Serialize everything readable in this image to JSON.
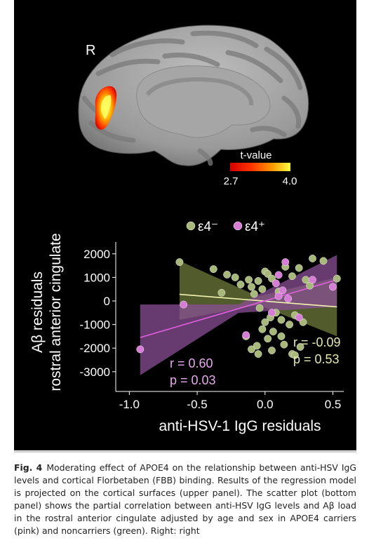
{
  "brain": {
    "hemisphere_label": "R",
    "colorbar_title": "t-value",
    "colorbar_min": "2.7",
    "colorbar_max": "4.0",
    "colorbar_colors": [
      "#d40000",
      "#ff3300",
      "#ff9900",
      "#ffff44"
    ]
  },
  "legend": {
    "green_label": "ε4⁻",
    "pink_label": "ε4⁺"
  },
  "chart_data": {
    "type": "scatter",
    "xlabel": "anti-HSV-1 IgG residuals",
    "ylabel_line1": "Aβ residuals",
    "ylabel_line2": "rostral anterior cingulate",
    "xlim": [
      -1.1,
      0.58
    ],
    "ylim": [
      -3600,
      2500
    ],
    "x_ticks": [
      -1.0,
      -0.5,
      0.0,
      0.5
    ],
    "x_tick_labels": [
      "-1.0",
      "-0.5",
      "0.0",
      "0.5"
    ],
    "y_ticks": [
      2000,
      1000,
      0,
      -1000,
      -2000,
      -3000
    ],
    "y_tick_labels": [
      "2000",
      "1000",
      "0",
      "-1000",
      "-2000",
      "-3000"
    ],
    "series": [
      {
        "name": "ε4⁻",
        "color": "#a8b87a",
        "points": [
          [
            -0.63,
            1650
          ],
          [
            -0.38,
            1350
          ],
          [
            -0.28,
            1120
          ],
          [
            -0.22,
            1000
          ],
          [
            -0.18,
            700
          ],
          [
            -0.32,
            350
          ],
          [
            -0.12,
            900
          ],
          [
            -0.1,
            600
          ],
          [
            -0.05,
            850
          ],
          [
            -0.02,
            500
          ],
          [
            0.0,
            1250
          ],
          [
            0.02,
            1150
          ],
          [
            0.05,
            950
          ],
          [
            -0.08,
            300
          ],
          [
            0.1,
            400
          ],
          [
            0.15,
            1450
          ],
          [
            0.2,
            1050
          ],
          [
            0.25,
            1400
          ],
          [
            0.3,
            900
          ],
          [
            0.35,
            1800
          ],
          [
            0.43,
            1700
          ],
          [
            0.53,
            950
          ],
          [
            0.33,
            650
          ],
          [
            -0.04,
            -300
          ],
          [
            0.0,
            -900
          ],
          [
            0.04,
            -700
          ],
          [
            0.08,
            -500
          ],
          [
            0.12,
            -800
          ],
          [
            0.18,
            -1000
          ],
          [
            0.22,
            -600
          ],
          [
            0.28,
            -900
          ],
          [
            0.06,
            -1300
          ],
          [
            0.12,
            -1500
          ],
          [
            0.14,
            -1850
          ],
          [
            0.02,
            -1600
          ],
          [
            -0.02,
            -1200
          ],
          [
            -0.06,
            -1900
          ],
          [
            -0.1,
            -2050
          ],
          [
            -0.14,
            -1500
          ],
          [
            0.05,
            -2100
          ],
          [
            0.2,
            -2250
          ],
          [
            -0.05,
            -2250
          ],
          [
            0.22,
            -2300
          ],
          [
            0.26,
            -1950
          ]
        ]
      },
      {
        "name": "ε4⁺",
        "color": "#d67ed6",
        "points": [
          [
            -0.92,
            -2050
          ],
          [
            -0.6,
            -150
          ],
          [
            -0.14,
            -1450
          ],
          [
            0.05,
            -500
          ],
          [
            0.08,
            750
          ],
          [
            0.1,
            1100
          ],
          [
            0.13,
            450
          ],
          [
            0.15,
            1650
          ],
          [
            0.17,
            100
          ],
          [
            0.25,
            -700
          ],
          [
            0.35,
            900
          ],
          [
            0.5,
            600
          ],
          [
            0.1,
            200
          ]
        ]
      }
    ],
    "annotations": [
      {
        "text": "r = 0.60",
        "series": "ε4⁺"
      },
      {
        "text": "p = 0.03",
        "series": "ε4⁺"
      },
      {
        "text": "r = -0.09",
        "series": "ε4⁻"
      },
      {
        "text": "p = 0.53",
        "series": "ε4⁻"
      }
    ],
    "fits": [
      {
        "series": "ε4⁻",
        "x": [
          -0.63,
          0.53
        ],
        "y": [
          280,
          -250
        ],
        "ci_upper_end": [
          1700,
          1000
        ],
        "ci_lower_end": [
          -800,
          -1500
        ],
        "ci_color": "#6e7a3a"
      },
      {
        "series": "ε4⁺",
        "x": [
          -0.92,
          0.53
        ],
        "y": [
          -1550,
          900
        ],
        "ci_upper_end": [
          -150,
          1950
        ],
        "ci_lower_end": [
          -3150,
          -250
        ],
        "ci_color": "#8a4f94"
      }
    ]
  },
  "caption": {
    "label": "Fig. 4",
    "text": "Moderating effect of APOE4 on the relationship between anti-HSV IgG levels and cortical Florbetaben (FBB) binding. Results of the regression model is projected on the cortical surfaces (upper panel). The scatter plot (bottom panel) shows the partial correlation between anti-HSV IgG levels and Aβ load in the rostral anterior cingulate adjusted by age and sex in APOE4 carriers (pink) and noncarriers (green). Right: right"
  }
}
